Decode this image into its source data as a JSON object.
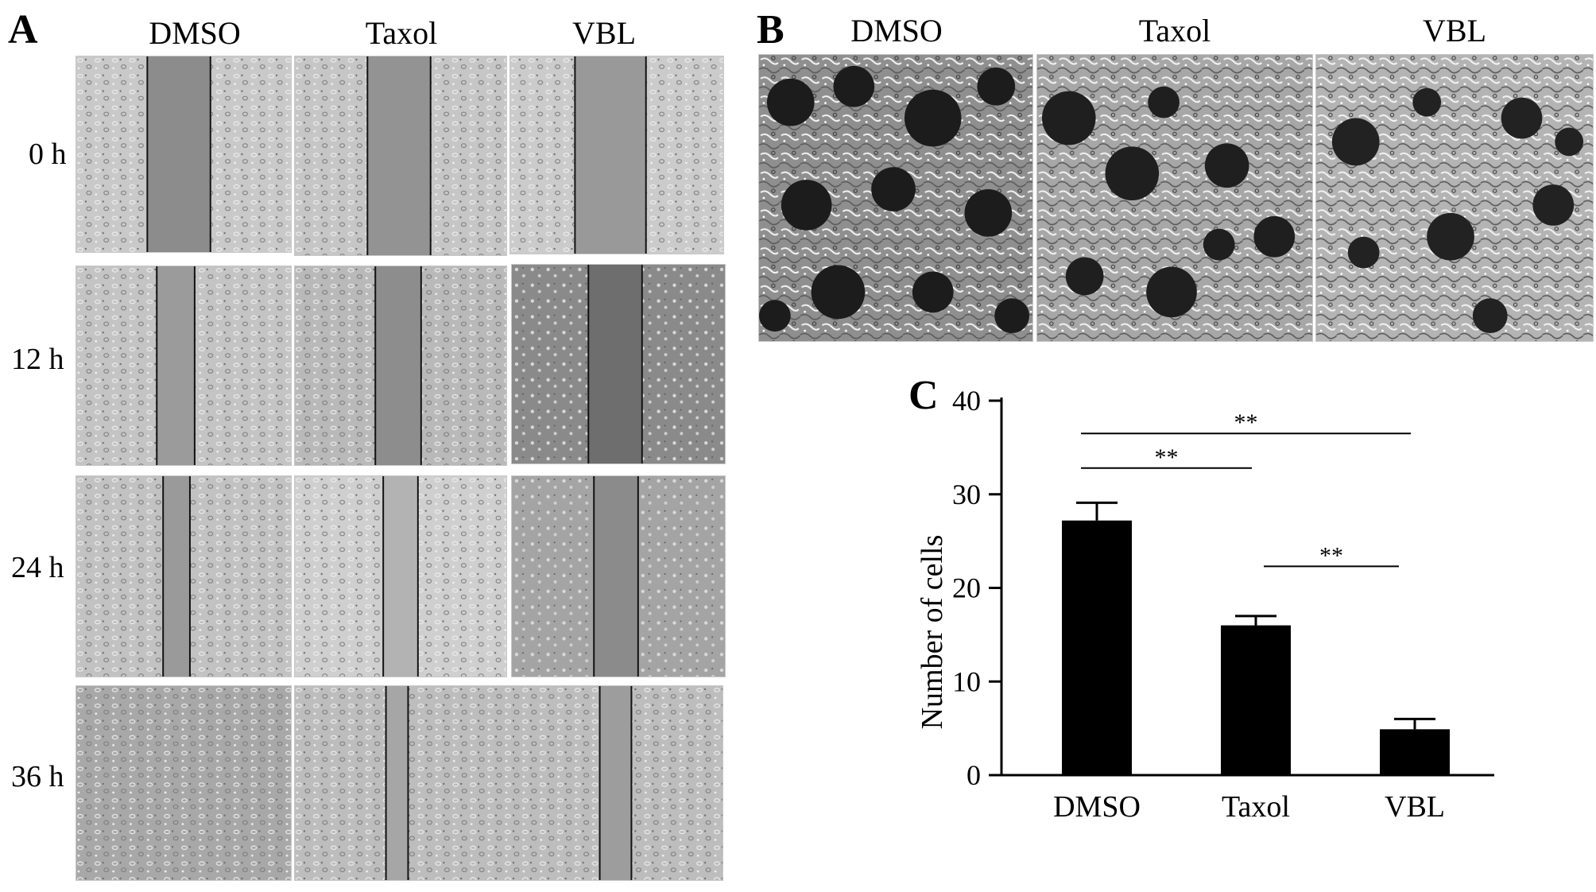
{
  "panels": {
    "a": {
      "letter": "A",
      "columns": [
        "DMSO",
        "Taxol",
        "VBL"
      ],
      "rows": [
        "0 h",
        "12 h",
        "24 h",
        "36 h"
      ]
    },
    "b": {
      "letter": "B",
      "columns": [
        "DMSO",
        "Taxol",
        "VBL"
      ]
    },
    "c": {
      "letter": "C"
    }
  },
  "chart_data": {
    "type": "bar",
    "categories": [
      "DMSO",
      "Taxol",
      "VBL"
    ],
    "values": [
      27.2,
      16.0,
      4.9
    ],
    "errors": [
      1.9,
      1.0,
      1.1
    ],
    "title": "",
    "xlabel": "",
    "ylabel": "Number of cells",
    "ylim": [
      0,
      40
    ],
    "yticks": [
      0,
      10,
      20,
      30,
      40
    ],
    "bar_color": "#000000",
    "significance": [
      {
        "from": "DMSO",
        "to": "Taxol",
        "label": "**"
      },
      {
        "from": "DMSO",
        "to": "VBL",
        "label": "**"
      },
      {
        "from": "Taxol",
        "to": "VBL",
        "label": "**"
      }
    ]
  }
}
